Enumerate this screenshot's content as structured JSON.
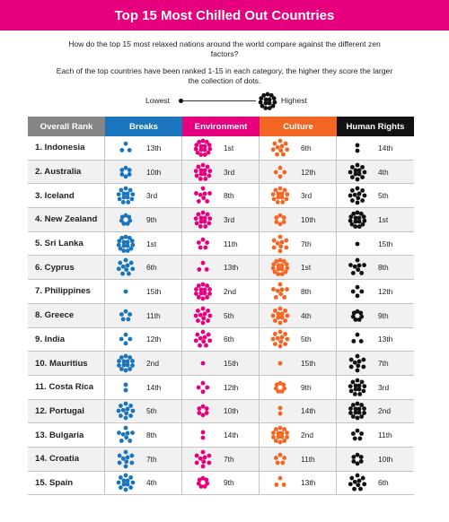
{
  "title": "Top 15 Most Chilled Out Countries",
  "intro": {
    "line1": "How do the top 15 most relaxed nations around the world compare against the different zen factors?",
    "line2": "Each of the top countries have been ranked 1-15 in each category, the higher they score the larger the collection of dots."
  },
  "scale": {
    "low_label": "Lowest",
    "high_label": "Highest"
  },
  "columns": [
    {
      "label": "Overall Rank",
      "color": "#858585"
    },
    {
      "label": "Breaks",
      "color": "#1b75bc"
    },
    {
      "label": "Environment",
      "color": "#e6007e"
    },
    {
      "label": "Culture",
      "color": "#f26522"
    },
    {
      "label": "Human Rights",
      "color": "#111111"
    }
  ],
  "rows": [
    {
      "country": "1. Indonesia",
      "ranks": [
        "13th",
        "1st",
        "6th",
        "14th"
      ]
    },
    {
      "country": "2. Australia",
      "ranks": [
        "10th",
        "3rd",
        "12th",
        "4th"
      ]
    },
    {
      "country": "3. Iceland",
      "ranks": [
        "3rd",
        "8th",
        "3rd",
        "5th"
      ]
    },
    {
      "country": "4. New Zealand",
      "ranks": [
        "9th",
        "3rd",
        "10th",
        "1st"
      ]
    },
    {
      "country": "5. Sri Lanka",
      "ranks": [
        "1st",
        "11th",
        "7th",
        "15th"
      ]
    },
    {
      "country": "6. Cyprus",
      "ranks": [
        "6th",
        "13th",
        "1st",
        "8th"
      ]
    },
    {
      "country": "7. Philippines",
      "ranks": [
        "15th",
        "2nd",
        "8th",
        "12th"
      ]
    },
    {
      "country": "8. Greece",
      "ranks": [
        "11th",
        "5th",
        "4th",
        "9th"
      ]
    },
    {
      "country": "9. India",
      "ranks": [
        "12th",
        "6th",
        "5th",
        "13th"
      ]
    },
    {
      "country": "10. Mauritius",
      "ranks": [
        "2nd",
        "15th",
        "15th",
        "7th"
      ]
    },
    {
      "country": "11. Costa Rica",
      "ranks": [
        "14th",
        "12th",
        "9th",
        "3rd"
      ]
    },
    {
      "country": "12. Portugal",
      "ranks": [
        "5th",
        "10th",
        "14th",
        "2nd"
      ]
    },
    {
      "country": "13. Bulgaria",
      "ranks": [
        "8th",
        "14th",
        "2nd",
        "11th"
      ]
    },
    {
      "country": "14. Croatia",
      "ranks": [
        "7th",
        "7th",
        "11th",
        "10th"
      ]
    },
    {
      "country": "15. Spain",
      "ranks": [
        "4th",
        "9th",
        "13th",
        "6th"
      ]
    }
  ]
}
